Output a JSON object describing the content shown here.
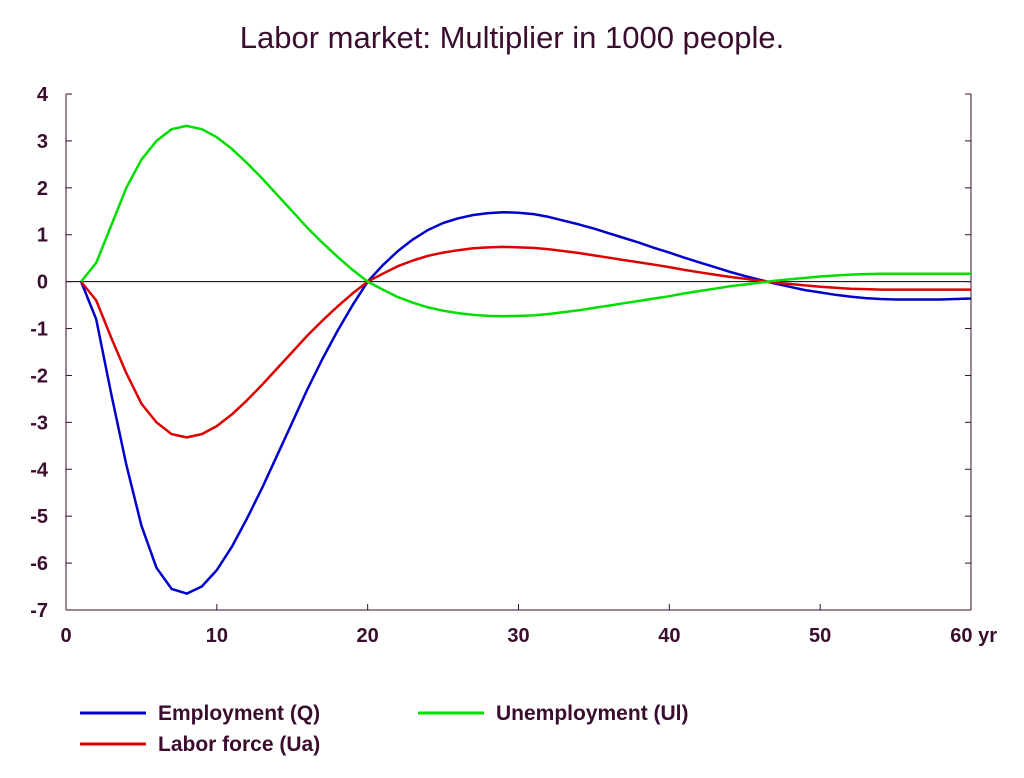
{
  "chart_data": {
    "type": "line",
    "title": "Labor market: Multiplier in 1000 people.",
    "xlim": [
      0,
      60
    ],
    "ylim": [
      -7,
      4
    ],
    "x_ticks": [
      {
        "value": 0,
        "label": "0"
      },
      {
        "value": 10,
        "label": "10"
      },
      {
        "value": 20,
        "label": "20"
      },
      {
        "value": 30,
        "label": "30"
      },
      {
        "value": 40,
        "label": "40"
      },
      {
        "value": 50,
        "label": "50"
      },
      {
        "value": 60,
        "label": "60 yr"
      }
    ],
    "y_ticks": [
      {
        "value": 4,
        "label": "4"
      },
      {
        "value": 3,
        "label": "3"
      },
      {
        "value": 2,
        "label": "2"
      },
      {
        "value": 1,
        "label": "1"
      },
      {
        "value": 0,
        "label": "0"
      },
      {
        "value": -1,
        "label": "-1"
      },
      {
        "value": -2,
        "label": "-2"
      },
      {
        "value": -3,
        "label": "-3"
      },
      {
        "value": -4,
        "label": "-4"
      },
      {
        "value": -5,
        "label": "-5"
      },
      {
        "value": -6,
        "label": "-6"
      },
      {
        "value": -7,
        "label": "-7"
      }
    ],
    "zero_line": true,
    "grid": false,
    "legend_position": "bottom",
    "x": [
      1,
      2,
      3,
      4,
      5,
      6,
      7,
      8,
      9,
      10,
      11,
      12,
      13,
      14,
      15,
      16,
      17,
      18,
      19,
      20,
      21,
      22,
      23,
      24,
      25,
      26,
      27,
      28,
      29,
      30,
      31,
      32,
      33,
      34,
      35,
      36,
      37,
      38,
      39,
      40,
      41,
      42,
      43,
      44,
      45,
      46,
      47,
      48,
      49,
      50,
      51,
      52,
      53,
      54,
      55,
      56,
      57,
      58,
      59,
      60
    ],
    "series": [
      {
        "name": "Employment (Q)",
        "color": "#0000cc",
        "values": [
          0.0,
          -0.8,
          -2.4,
          -3.9,
          -5.2,
          -6.1,
          -6.55,
          -6.65,
          -6.5,
          -6.15,
          -5.65,
          -5.05,
          -4.4,
          -3.7,
          -3.0,
          -2.3,
          -1.65,
          -1.05,
          -0.5,
          0.0,
          0.35,
          0.65,
          0.9,
          1.1,
          1.25,
          1.35,
          1.42,
          1.46,
          1.48,
          1.47,
          1.44,
          1.38,
          1.3,
          1.22,
          1.13,
          1.03,
          0.93,
          0.83,
          0.72,
          0.62,
          0.51,
          0.41,
          0.31,
          0.21,
          0.12,
          0.04,
          -0.04,
          -0.11,
          -0.18,
          -0.23,
          -0.28,
          -0.32,
          -0.35,
          -0.37,
          -0.38,
          -0.38,
          -0.38,
          -0.38,
          -0.37,
          -0.36
        ]
      },
      {
        "name": "Labor force (Ua)",
        "color": "#dd0000",
        "values": [
          0.0,
          -0.4,
          -1.2,
          -1.95,
          -2.6,
          -3.0,
          -3.25,
          -3.32,
          -3.25,
          -3.08,
          -2.83,
          -2.53,
          -2.2,
          -1.85,
          -1.5,
          -1.15,
          -0.83,
          -0.53,
          -0.25,
          0.0,
          0.17,
          0.33,
          0.45,
          0.55,
          0.62,
          0.67,
          0.71,
          0.73,
          0.74,
          0.73,
          0.72,
          0.69,
          0.65,
          0.61,
          0.56,
          0.51,
          0.46,
          0.41,
          0.36,
          0.31,
          0.25,
          0.2,
          0.15,
          0.1,
          0.06,
          0.02,
          -0.02,
          -0.05,
          -0.08,
          -0.11,
          -0.13,
          -0.15,
          -0.16,
          -0.17,
          -0.17,
          -0.17,
          -0.17,
          -0.17,
          -0.17,
          -0.17
        ]
      },
      {
        "name": "Unemployment (Ul)",
        "color": "#00dd00",
        "values": [
          0.0,
          0.4,
          1.2,
          2.0,
          2.6,
          3.0,
          3.25,
          3.32,
          3.25,
          3.08,
          2.83,
          2.53,
          2.2,
          1.85,
          1.5,
          1.15,
          0.83,
          0.53,
          0.25,
          0.0,
          -0.17,
          -0.33,
          -0.45,
          -0.55,
          -0.62,
          -0.67,
          -0.71,
          -0.73,
          -0.74,
          -0.73,
          -0.72,
          -0.69,
          -0.65,
          -0.61,
          -0.56,
          -0.51,
          -0.46,
          -0.41,
          -0.36,
          -0.31,
          -0.25,
          -0.2,
          -0.15,
          -0.1,
          -0.06,
          -0.02,
          0.02,
          0.05,
          0.08,
          0.11,
          0.13,
          0.15,
          0.16,
          0.17,
          0.17,
          0.17,
          0.17,
          0.17,
          0.17,
          0.17
        ]
      }
    ]
  }
}
